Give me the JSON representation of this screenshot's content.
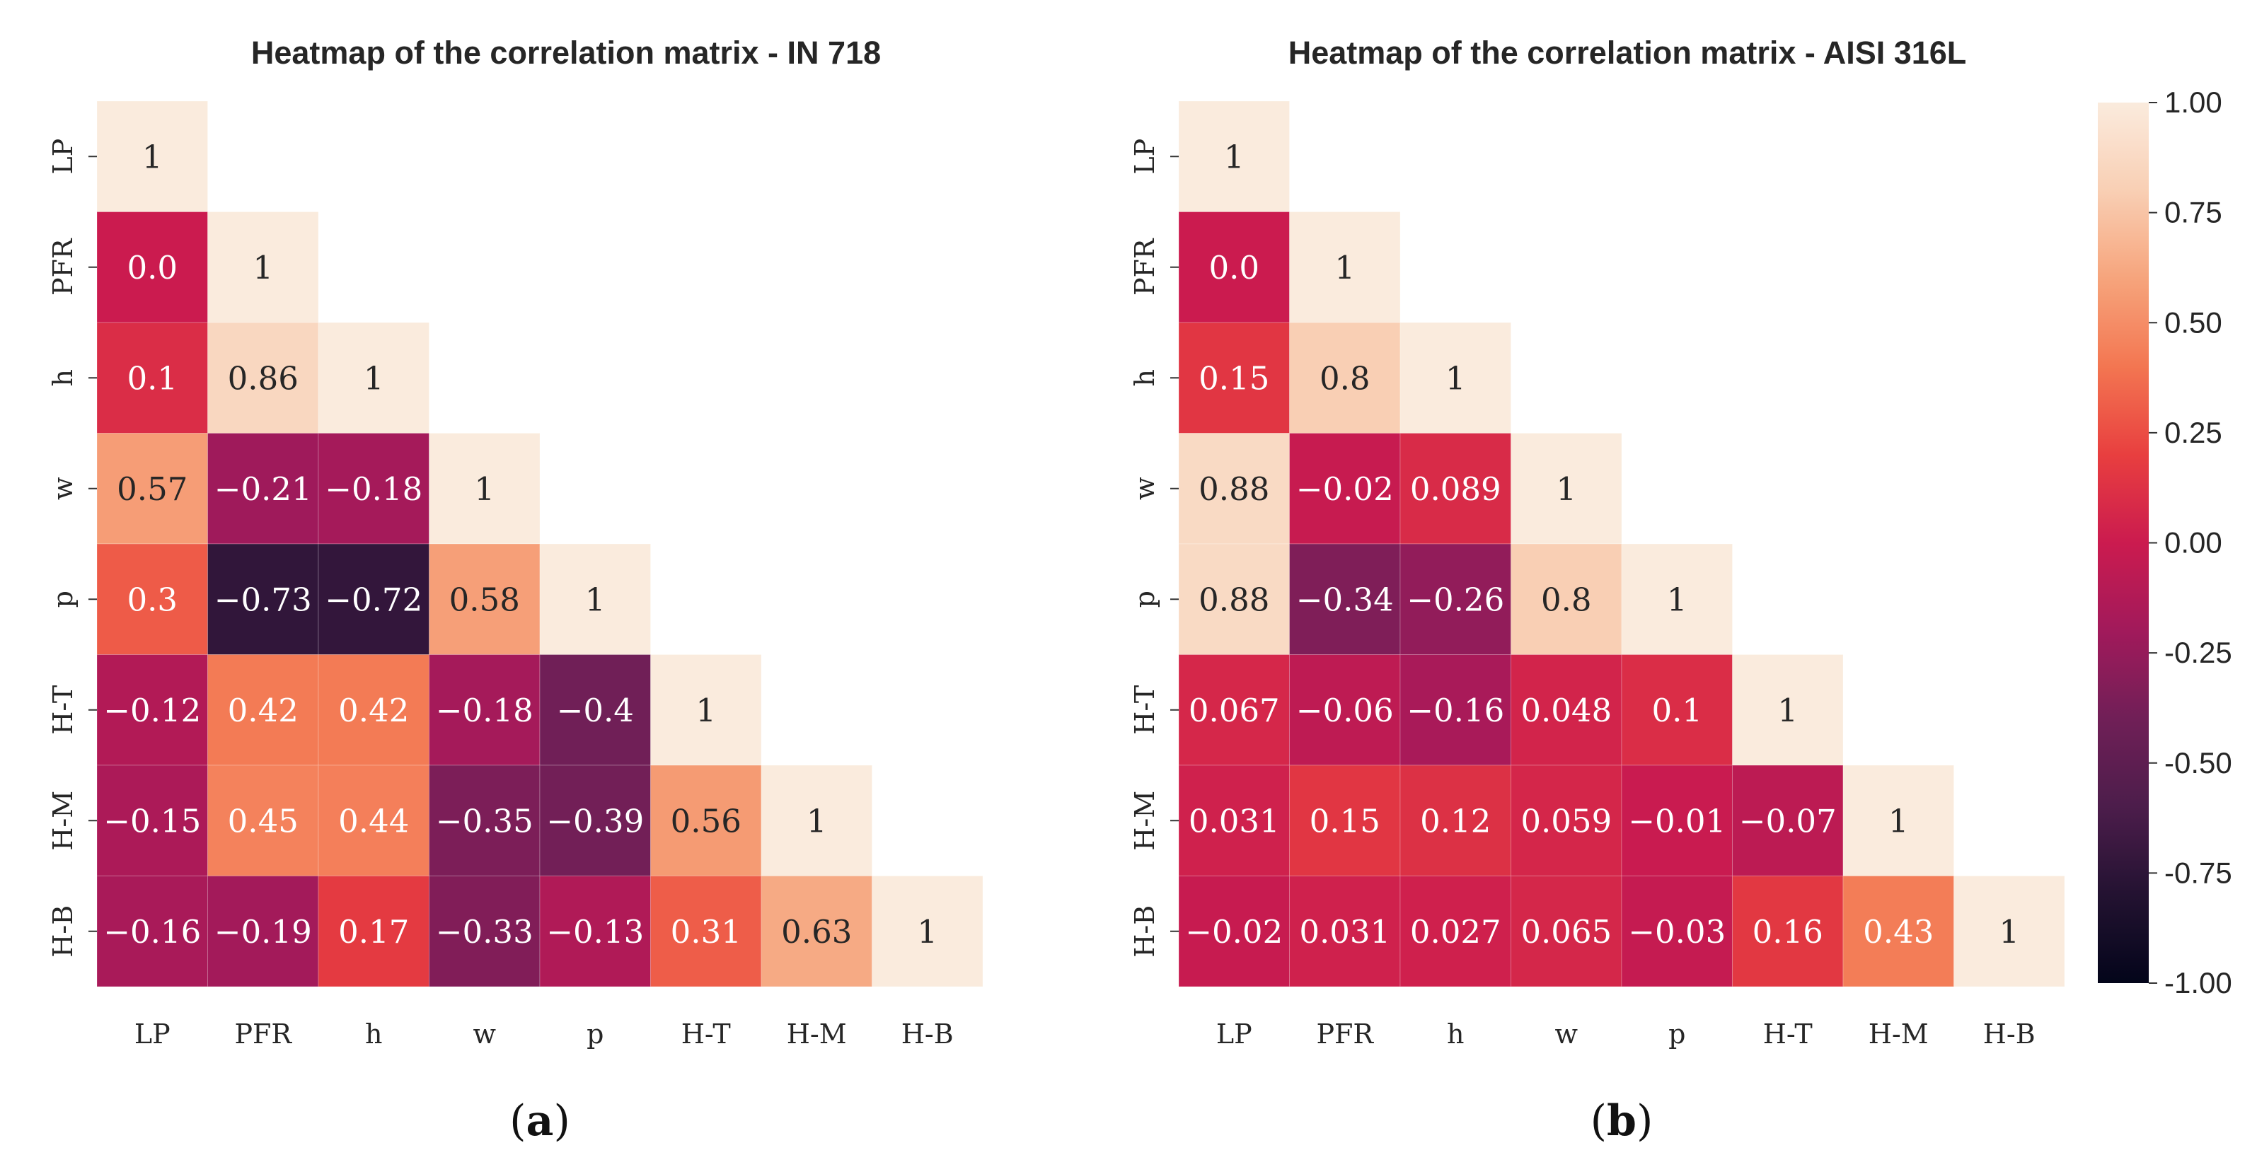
{
  "chart_data": [
    {
      "type": "heatmap",
      "panel": "(a)",
      "panel_parts": {
        "open": "(",
        "letter": "a",
        "close": ")"
      },
      "title": "Heatmap of the correlation matrix - IN 718",
      "variables": [
        "LP",
        "PFR",
        "h",
        "w",
        "p",
        "H-T",
        "H-M",
        "H-B"
      ],
      "matrix": [
        [
          "1"
        ],
        [
          "0.0",
          "1"
        ],
        [
          "0.1",
          "0.86",
          "1"
        ],
        [
          "0.57",
          "−0.21",
          "−0.18",
          "1"
        ],
        [
          "0.3",
          "−0.73",
          "−0.72",
          "0.58",
          "1"
        ],
        [
          "−0.12",
          "0.42",
          "0.42",
          "−0.18",
          "−0.4",
          "1"
        ],
        [
          "−0.15",
          "0.45",
          "0.44",
          "−0.35",
          "−0.39",
          "0.56",
          "1"
        ],
        [
          "−0.16",
          "−0.19",
          "0.17",
          "−0.33",
          "−0.13",
          "0.31",
          "0.63",
          "1"
        ]
      ],
      "vmin": -1.0,
      "vmax": 1.0,
      "mask": "upper-triangle"
    },
    {
      "type": "heatmap",
      "panel": "(b)",
      "panel_parts": {
        "open": "(",
        "letter": "b",
        "close": ")"
      },
      "title": "Heatmap of the correlation matrix - AISI 316L",
      "variables": [
        "LP",
        "PFR",
        "h",
        "w",
        "p",
        "H-T",
        "H-M",
        "H-B"
      ],
      "matrix": [
        [
          "1"
        ],
        [
          "0.0",
          "1"
        ],
        [
          "0.15",
          "0.8",
          "1"
        ],
        [
          "0.88",
          "−0.02",
          "0.089",
          "1"
        ],
        [
          "0.88",
          "−0.34",
          "−0.26",
          "0.8",
          "1"
        ],
        [
          "0.067",
          "−0.06",
          "−0.16",
          "0.048",
          "0.1",
          "1"
        ],
        [
          "0.031",
          "0.15",
          "0.12",
          "0.059",
          "−0.01",
          "−0.07",
          "1"
        ],
        [
          "−0.02",
          "0.031",
          "0.027",
          "0.065",
          "−0.03",
          "0.16",
          "0.43",
          "1"
        ]
      ],
      "vmin": -1.0,
      "vmax": 1.0,
      "mask": "upper-triangle"
    }
  ],
  "colorbar": {
    "ticks": [
      "1.00",
      "0.75",
      "0.50",
      "0.25",
      "0.00",
      "-0.25",
      "-0.50",
      "-0.75",
      "-1.00"
    ],
    "tick_values": [
      1.0,
      0.75,
      0.5,
      0.25,
      0.0,
      -0.25,
      -0.5,
      -0.75,
      -1.0
    ],
    "colormap": "rocket",
    "colors": [
      "#03051a",
      "#231231",
      "#4c1d4b",
      "#701f57",
      "#a11a5b",
      "#cb1b4f",
      "#e83f3f",
      "#f37651",
      "#f6a47c",
      "#f9cfb4",
      "#faebdd"
    ]
  }
}
